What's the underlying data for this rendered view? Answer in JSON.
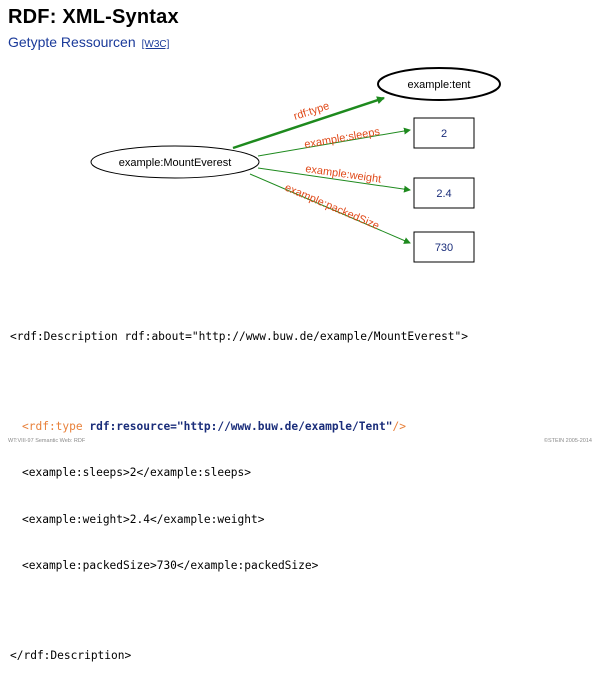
{
  "header": {
    "title": "RDF: XML-Syntax",
    "subtitle": "Getypte Ressourcen",
    "subtitle_ref": "[W3C]"
  },
  "diagram": {
    "subject": "example:MountEverest",
    "type_node": "example:tent",
    "edges": [
      {
        "label": "rdf:type",
        "target": "example:tent"
      },
      {
        "label": "example:sleeps",
        "target": "2"
      },
      {
        "label": "example:weight",
        "target": "2.4"
      },
      {
        "label": "example:packedSize",
        "target": "730"
      }
    ],
    "literals": [
      "2",
      "2.4",
      "730"
    ],
    "colors": {
      "type_edge": "#1e8a1e",
      "property_label": "#e04a1a",
      "literal_text": "#1a2d7a"
    }
  },
  "code": {
    "open_tag": "<rdf:Description rdf:about=\"http://www.buw.de/example/MountEverest\">",
    "type_line_start": "<rdf:type ",
    "type_line_attr": "rdf:resource=\"http://www.buw.de/example/Tent\"",
    "type_line_end": "/>",
    "sleeps_line": "<example:sleeps>2</example:sleeps>",
    "weight_line": "<example:weight>2.4</example:weight>",
    "packed_line": "<example:packedSize>730</example:packedSize>",
    "close_tag": "</rdf:Description>"
  },
  "footer": {
    "left": "WT:VIII-97    Semantic Web: RDF",
    "right": "©STEIN 2005-2014"
  }
}
